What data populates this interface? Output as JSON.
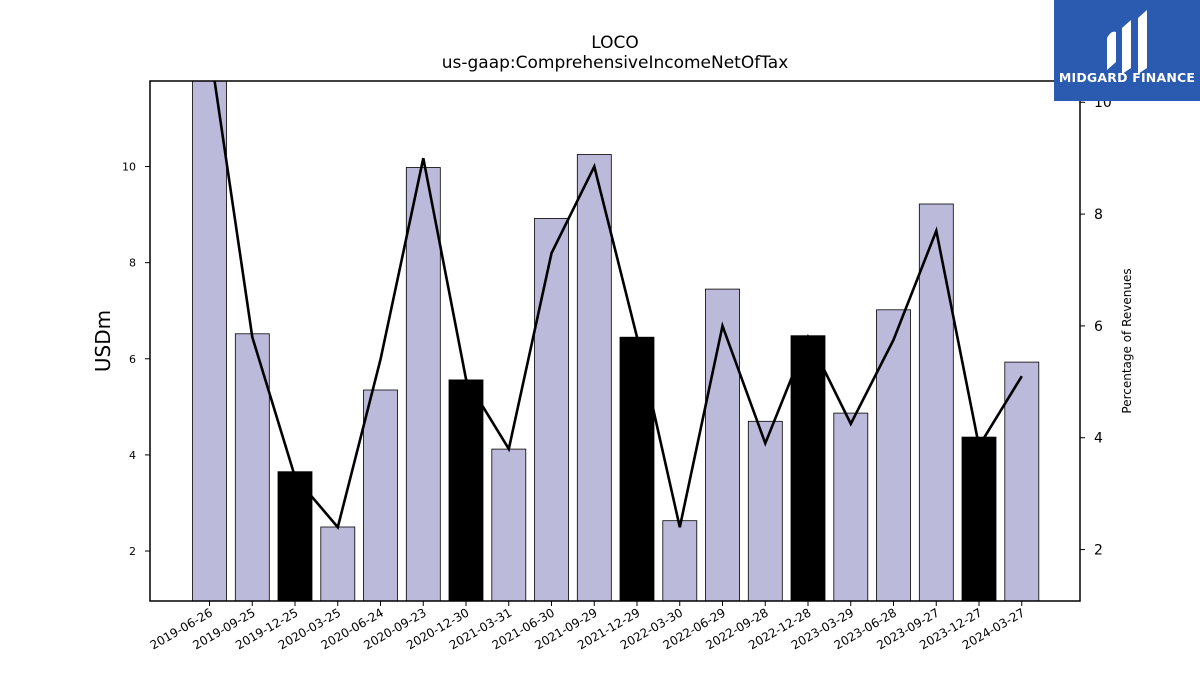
{
  "chart_data": {
    "type": "bar",
    "title": "LOCO",
    "subtitle": "us-gaap:ComprehensiveIncomeNetOfTax",
    "ylabel": "USDm",
    "y2label": "Percentage of Revenues",
    "categories": [
      "2019-06-26",
      "2019-09-25",
      "2019-12-25",
      "2020-03-25",
      "2020-06-24",
      "2020-09-23",
      "2020-12-30",
      "2021-03-31",
      "2021-06-30",
      "2021-09-29",
      "2021-12-29",
      "2022-03-30",
      "2022-06-29",
      "2022-09-28",
      "2022-12-28",
      "2023-03-29",
      "2023-06-28",
      "2023-09-27",
      "2023-12-27",
      "2024-03-27"
    ],
    "series": [
      {
        "type": "bar",
        "values": [
          11.85,
          6.52,
          3.65,
          2.5,
          5.35,
          9.98,
          5.56,
          4.12,
          8.92,
          10.25,
          6.45,
          2.63,
          7.45,
          4.7,
          6.48,
          4.87,
          7.02,
          9.22,
          4.37,
          5.93
        ],
        "colors": [
          "#bcbadb",
          "#bcbadb",
          "#000000",
          "#bcbadb",
          "#bcbadb",
          "#bcbadb",
          "#000000",
          "#bcbadb",
          "#bcbadb",
          "#bcbadb",
          "#000000",
          "#bcbadb",
          "#bcbadb",
          "#bcbadb",
          "#000000",
          "#bcbadb",
          "#bcbadb",
          "#bcbadb",
          "#000000",
          "#bcbadb"
        ]
      },
      {
        "type": "line",
        "axis": "right",
        "values": [
          11.0,
          5.8,
          3.3,
          2.4,
          5.4,
          9.0,
          5.05,
          3.8,
          7.3,
          8.85,
          5.8,
          2.4,
          6.0,
          3.9,
          5.8,
          4.25,
          5.75,
          7.7,
          3.85,
          5.1
        ],
        "color": "#000000"
      }
    ],
    "ylim": [
      0.96,
      11.78
    ],
    "yticks": [
      2,
      4,
      6,
      8,
      10
    ],
    "y2lim": [
      1.08,
      10.38
    ],
    "y2ticks": [
      2,
      4,
      6,
      8,
      10
    ],
    "grid": false,
    "legend": "none"
  },
  "logo": {
    "text": "MIDGARD FINANCE",
    "icon": "midgard-logo-icon",
    "background": "#2b5bb0"
  }
}
